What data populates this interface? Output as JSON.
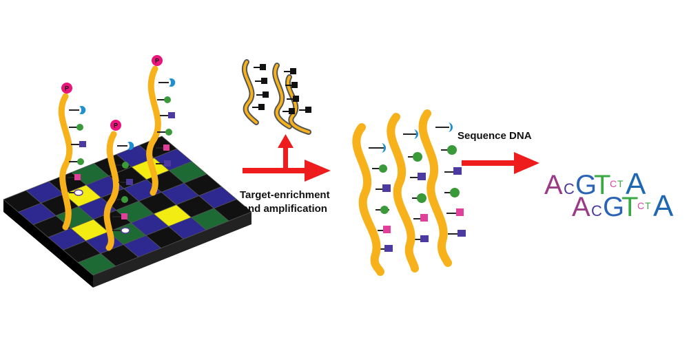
{
  "labels": {
    "enrichment_line1": "Target-enrichment",
    "enrichment_line2": "and amplification",
    "sequence": "Sequence DNA"
  },
  "phosphate_label": "P",
  "sequence_logo": {
    "row1": [
      {
        "letter": "A",
        "color": "#9b3a86"
      },
      {
        "letter": "C",
        "color": "#4a3a9a"
      },
      {
        "letter": "G",
        "color": "#2a63b8"
      },
      {
        "letter": "T",
        "color": "#3aa843"
      },
      {
        "letter": "C",
        "color": "#d94aa0"
      },
      {
        "letter": "T",
        "color": "#3aa843"
      },
      {
        "letter": "A",
        "color": "#1e67b3"
      }
    ],
    "row2": [
      {
        "letter": "A",
        "color": "#9b3a86"
      },
      {
        "letter": "C",
        "color": "#4a3a9a"
      },
      {
        "letter": "G",
        "color": "#2a63b8"
      },
      {
        "letter": "T",
        "color": "#3aa843"
      },
      {
        "letter": "C",
        "color": "#d94aa0"
      },
      {
        "letter": "T",
        "color": "#3aa843"
      },
      {
        "letter": "A",
        "color": "#1e67b3"
      }
    ]
  },
  "colors": {
    "strand": "#f7b21b",
    "arrow": "#ee1c1c",
    "phosphate": "#e8157a",
    "tile_black": "#111111",
    "tile_purple": "#2e2891",
    "tile_green": "#1e6a35",
    "tile_yellow": "#f3ec13",
    "base_blue": "#1f8fd0",
    "base_green": "#3a9a3a",
    "base_purple": "#4c3aa0",
    "base_pink": "#e0409a"
  }
}
